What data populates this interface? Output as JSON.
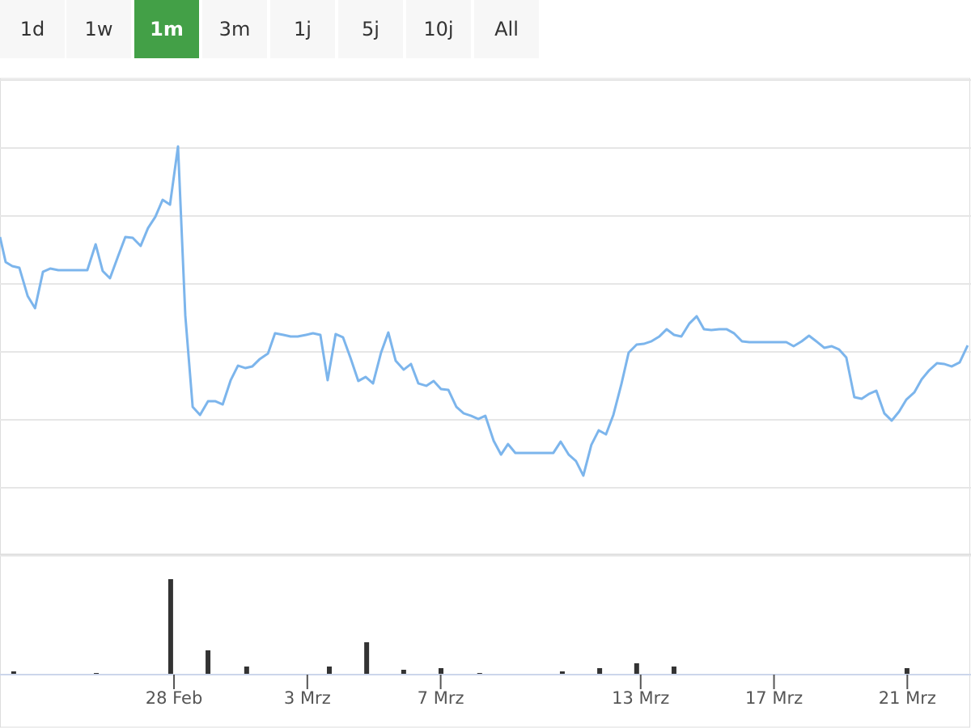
{
  "range_buttons": [
    "1d",
    "1w",
    "1m",
    "3m",
    "1j",
    "5j",
    "10j",
    "All"
  ],
  "active_range": "1m",
  "chart_data": [
    {
      "type": "line",
      "color": "#7cb5ec",
      "grid": true,
      "xlim": [
        -5.22,
        23.91
      ],
      "ylim": [
        0,
        589
      ],
      "yticks": [
        0,
        84,
        168,
        252,
        336,
        420,
        504,
        588
      ],
      "x": [
        -5.22,
        -5.05,
        -4.85,
        -4.64,
        -4.39,
        -4.17,
        -3.93,
        -3.71,
        -3.47,
        -3.03,
        -2.6,
        -2.35,
        -2.14,
        -1.92,
        -1.67,
        -1.46,
        -1.24,
        -1.0,
        -0.78,
        -0.56,
        -0.34,
        -0.12,
        0.12,
        0.34,
        0.56,
        0.78,
        1.02,
        1.24,
        1.46,
        1.7,
        1.92,
        2.14,
        2.35,
        2.57,
        2.82,
        3.03,
        3.28,
        3.5,
        3.71,
        3.96,
        4.17,
        4.39,
        4.61,
        4.85,
        5.07,
        5.29,
        5.53,
        5.75,
        5.97,
        6.21,
        6.43,
        6.65,
        6.89,
        7.11,
        7.33,
        7.57,
        7.79,
        8.01,
        8.23,
        8.47,
        8.69,
        8.91,
        9.13,
        9.34,
        9.59,
        9.81,
        10.02,
        10.24,
        11.38,
        11.6,
        11.84,
        12.06,
        12.28,
        12.52,
        12.74,
        12.96,
        13.18,
        13.42,
        13.64,
        13.88,
        14.1,
        14.32,
        14.56,
        14.78,
        15.0,
        15.22,
        15.46,
        15.68,
        15.9,
        16.12,
        16.36,
        16.58,
        16.8,
        17.04,
        17.26,
        17.48,
        18.37,
        18.59,
        18.83,
        19.05,
        19.27,
        19.51,
        19.73,
        19.95,
        20.17,
        20.41,
        20.63,
        20.85,
        21.07,
        21.31,
        21.53,
        21.75,
        21.97,
        22.21,
        22.43,
        22.65,
        22.89,
        23.11,
        23.33,
        23.57,
        23.81
      ],
      "values": [
        394,
        363,
        358,
        356,
        321,
        306,
        351,
        355,
        353,
        353,
        353,
        385,
        352,
        343,
        371,
        394,
        393,
        383,
        405,
        419,
        440,
        434,
        506,
        297,
        184,
        174,
        191,
        191,
        187,
        217,
        235,
        232,
        234,
        243,
        250,
        275,
        273,
        271,
        271,
        273,
        275,
        273,
        217,
        274,
        270,
        245,
        216,
        221,
        213,
        251,
        276,
        241,
        230,
        237,
        213,
        210,
        216,
        206,
        205,
        184,
        176,
        173,
        169,
        173,
        142,
        125,
        138,
        127,
        127,
        141,
        125,
        117,
        99,
        137,
        155,
        150,
        174,
        212,
        251,
        261,
        262,
        265,
        271,
        280,
        273,
        271,
        287,
        296,
        280,
        279,
        280,
        280,
        275,
        265,
        264,
        264,
        264,
        259,
        265,
        272,
        265,
        257,
        259,
        255,
        245,
        196,
        194,
        200,
        204,
        176,
        167,
        178,
        193,
        202,
        218,
        229,
        238,
        237,
        234,
        239,
        260
      ]
    },
    {
      "type": "bar",
      "color": "#333333",
      "xlim": [
        -5.22,
        23.91
      ],
      "ylim": [
        0,
        148
      ],
      "xticks": [
        {
          "value": 0,
          "label": "28 Feb"
        },
        {
          "value": 4,
          "label": "3 Mrz"
        },
        {
          "value": 8,
          "label": "7 Mrz"
        },
        {
          "value": 14,
          "label": "13 Mrz"
        },
        {
          "value": 18,
          "label": "17 Mrz"
        },
        {
          "value": 22,
          "label": "21 Mrz"
        }
      ],
      "x": [
        -4.81,
        -2.33,
        -0.1,
        1.02,
        2.18,
        4.66,
        5.78,
        6.89,
        8.01,
        9.17,
        11.65,
        12.77,
        13.88,
        15.0,
        21.99
      ],
      "values": [
        4,
        2,
        118,
        30,
        10,
        10,
        40,
        6,
        8,
        2,
        4,
        8,
        14,
        10,
        8
      ]
    }
  ]
}
